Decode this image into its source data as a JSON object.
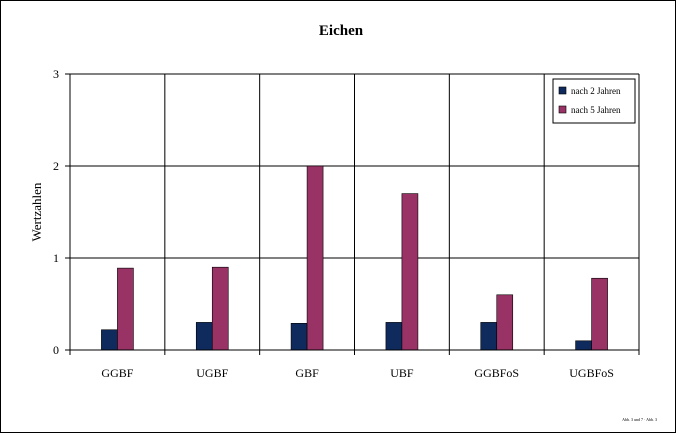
{
  "chart_data": {
    "type": "bar",
    "title": "Eichen",
    "xlabel": "",
    "ylabel": "Wertzahlen",
    "categories": [
      "GGBF",
      "UGBF",
      "GBF",
      "UBF",
      "GGBFoS",
      "UGBFoS"
    ],
    "series": [
      {
        "name": "nach 2 Jahren",
        "color": "#0f2a5c",
        "values": [
          0.22,
          0.3,
          0.29,
          0.3,
          0.3,
          0.1
        ]
      },
      {
        "name": "nach 5 Jahren",
        "color": "#993366",
        "values": [
          0.89,
          0.9,
          2.0,
          1.7,
          0.6,
          0.78
        ]
      }
    ],
    "ylim": [
      0,
      3
    ],
    "yticks": [
      0,
      1,
      2,
      3
    ],
    "grid": true,
    "legend_position": "top-right"
  },
  "footnote": "Abb. 3 und 7 · Abb. 3"
}
